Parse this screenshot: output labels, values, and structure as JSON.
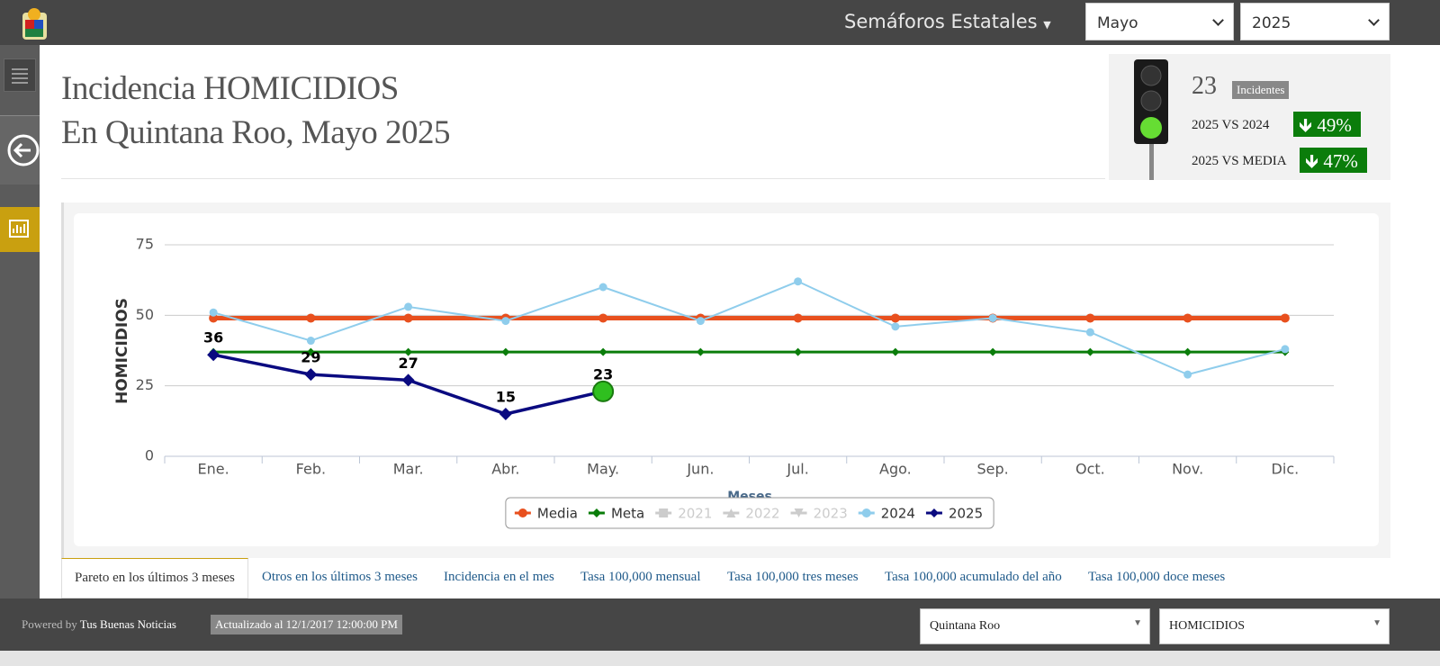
{
  "topbar": {
    "title": "Semáforos Estatales",
    "month": "Mayo",
    "year": "2025"
  },
  "header": {
    "line1": "Incidencia HOMICIDIOS",
    "line2": "En Quintana Roo, Mayo 2025"
  },
  "stats": {
    "count": "23",
    "count_label": "Incidentes",
    "compare_1_label": "2025 VS 2024",
    "compare_1_value": "49%",
    "compare_2_label": "2025 VS MEDIA",
    "compare_2_value": "47%"
  },
  "chart_data": {
    "type": "line",
    "y_label": "HOMICIDIOS",
    "x_label": "Meses",
    "categories": [
      "Ene.",
      "Feb.",
      "Mar.",
      "Abr.",
      "May.",
      "Jun.",
      "Jul.",
      "Ago.",
      "Sep.",
      "Oct.",
      "Nov.",
      "Dic."
    ],
    "ylim": [
      0,
      75
    ],
    "yticks": [
      0,
      25,
      50,
      75
    ],
    "grid": true,
    "series": [
      {
        "name": "Media",
        "color": "#e8501e",
        "marker": "circle",
        "visible": true,
        "values": [
          49,
          49,
          49,
          49,
          49,
          49,
          49,
          49,
          49,
          49,
          49,
          49
        ]
      },
      {
        "name": "Meta",
        "color": "#0a7d0a",
        "marker": "diamond",
        "visible": true,
        "values": [
          37,
          37,
          37,
          37,
          37,
          37,
          37,
          37,
          37,
          37,
          37,
          37
        ]
      },
      {
        "name": "2021",
        "color": "#cccccc",
        "marker": "square",
        "visible": false,
        "values": [
          null,
          null,
          null,
          null,
          null,
          null,
          null,
          null,
          null,
          null,
          null,
          null
        ]
      },
      {
        "name": "2022",
        "color": "#cccccc",
        "marker": "triangle",
        "visible": false,
        "values": [
          null,
          null,
          null,
          null,
          null,
          null,
          null,
          null,
          null,
          null,
          null,
          null
        ]
      },
      {
        "name": "2023",
        "color": "#cccccc",
        "marker": "triangle-down",
        "visible": false,
        "values": [
          null,
          null,
          null,
          null,
          null,
          null,
          null,
          null,
          null,
          null,
          null,
          null
        ]
      },
      {
        "name": "2024",
        "color": "#8fcdec",
        "marker": "circle",
        "visible": true,
        "values": [
          51,
          41,
          53,
          48,
          60,
          48,
          62,
          46,
          49,
          44,
          29,
          38
        ]
      },
      {
        "name": "2025",
        "color": "#0a0a80",
        "marker": "diamond",
        "visible": true,
        "data_labels": true,
        "values": [
          36,
          29,
          27,
          15,
          23,
          null,
          null,
          null,
          null,
          null,
          null,
          null
        ]
      }
    ]
  },
  "tabs": [
    "Pareto en los últimos 3 meses",
    "Otros en los últimos 3 meses",
    "Incidencia en el mes",
    "Tasa 100,000 mensual",
    "Tasa 100,000 tres meses",
    "Tasa 100,000 acumulado del año",
    "Tasa 100,000 doce meses"
  ],
  "footer": {
    "powered_by": "Powered by",
    "brand": "Tus Buenas Noticias",
    "updated": "Actualizado al 12/1/2017 12:00:00 PM",
    "state": "Quintana Roo",
    "crime": "HOMICIDIOS"
  }
}
